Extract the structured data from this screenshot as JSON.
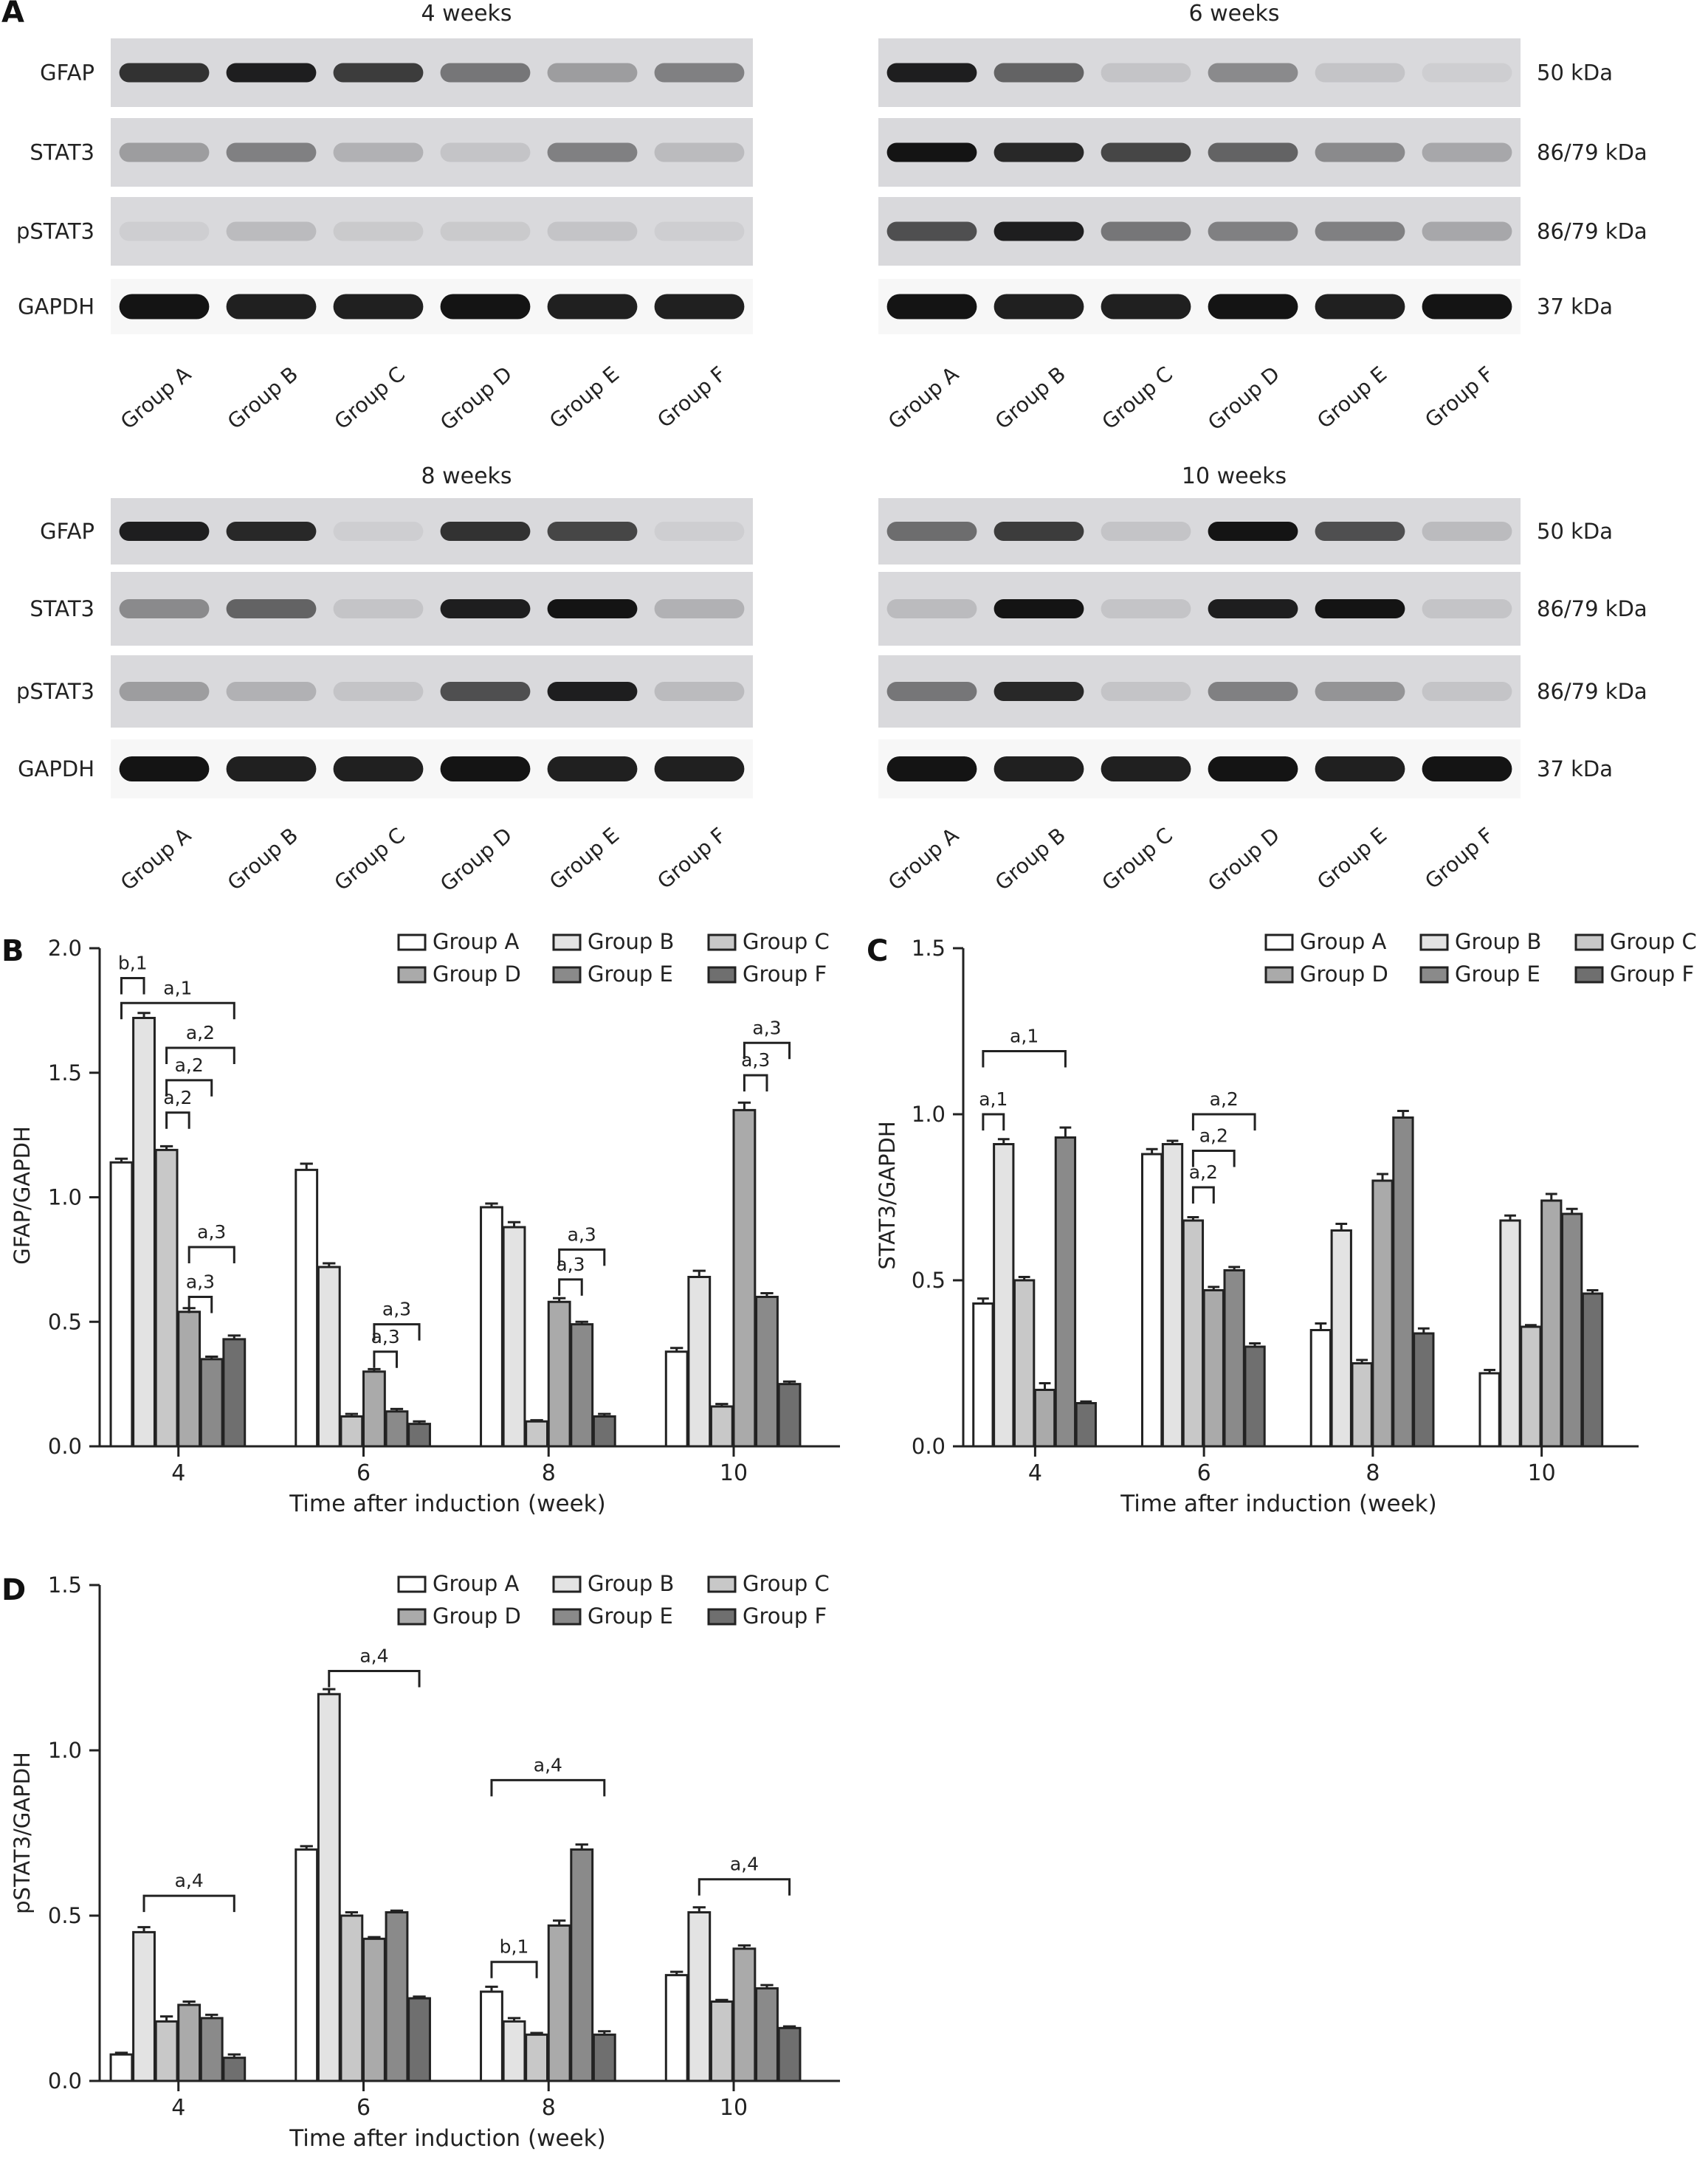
{
  "panel_letters": [
    "A",
    "B",
    "C",
    "D"
  ],
  "blots": {
    "groups": [
      "Group A",
      "Group B",
      "Group C",
      "Group D",
      "Group E",
      "Group F"
    ],
    "rows": [
      "GFAP",
      "STAT3",
      "pSTAT3",
      "GAPDH"
    ],
    "sizes": [
      "50 kDa",
      "86/79 kDa",
      "86/79 kDa",
      "37 kDa"
    ],
    "panels": [
      {
        "title": "4 weeks",
        "intensity": [
          [
            0.85,
            0.95,
            0.8,
            0.5,
            0.3,
            0.45
          ],
          [
            0.3,
            0.45,
            0.2,
            0.1,
            0.45,
            0.15
          ],
          [
            0.05,
            0.15,
            0.08,
            0.08,
            0.1,
            0.05
          ],
          [
            1,
            0.95,
            0.95,
            1,
            0.95,
            0.95
          ]
        ]
      },
      {
        "title": "6 weeks",
        "intensity": [
          [
            0.95,
            0.6,
            0.1,
            0.4,
            0.1,
            0.05
          ],
          [
            1,
            0.9,
            0.75,
            0.6,
            0.4,
            0.25
          ],
          [
            0.7,
            0.95,
            0.5,
            0.45,
            0.45,
            0.25
          ],
          [
            1,
            0.95,
            0.95,
            1,
            0.95,
            1
          ]
        ]
      },
      {
        "title": "8 weeks",
        "intensity": [
          [
            0.95,
            0.9,
            0.05,
            0.85,
            0.75,
            0.05
          ],
          [
            0.4,
            0.6,
            0.1,
            0.95,
            1,
            0.2
          ],
          [
            0.3,
            0.2,
            0.1,
            0.7,
            0.95,
            0.15
          ],
          [
            1,
            0.95,
            0.95,
            1,
            0.95,
            0.95
          ]
        ]
      },
      {
        "title": "10 weeks",
        "intensity": [
          [
            0.55,
            0.8,
            0.1,
            1,
            0.7,
            0.15
          ],
          [
            0.15,
            1,
            0.1,
            0.95,
            1,
            0.1
          ],
          [
            0.5,
            0.9,
            0.1,
            0.45,
            0.35,
            0.1
          ],
          [
            1,
            0.95,
            0.95,
            1,
            0.95,
            1
          ]
        ]
      }
    ]
  },
  "chart_data": [
    {
      "type": "bar",
      "panel": "B",
      "xlabel": "Time after induction (week)",
      "ylabel": "GFAP/GAPDH",
      "categories": [
        "4",
        "6",
        "8",
        "10"
      ],
      "ylim": [
        0,
        2.0
      ],
      "yticks": [
        "0.0",
        "0.5",
        "1.0",
        "1.5",
        "2.0"
      ],
      "series": [
        {
          "name": "Group A",
          "values": [
            1.14,
            1.11,
            0.96,
            0.38
          ],
          "errors": [
            0.015,
            0.025,
            0.015,
            0.015
          ]
        },
        {
          "name": "Group B",
          "values": [
            1.72,
            0.72,
            0.88,
            0.68
          ],
          "errors": [
            0.02,
            0.015,
            0.02,
            0.025
          ]
        },
        {
          "name": "Group C",
          "values": [
            1.19,
            0.12,
            0.1,
            0.16
          ],
          "errors": [
            0.015,
            0.01,
            0.005,
            0.01
          ]
        },
        {
          "name": "Group D",
          "values": [
            0.54,
            0.3,
            0.58,
            1.35
          ],
          "errors": [
            0.015,
            0.01,
            0.015,
            0.03
          ]
        },
        {
          "name": "Group E",
          "values": [
            0.35,
            0.14,
            0.49,
            0.6
          ],
          "errors": [
            0.01,
            0.01,
            0.01,
            0.015
          ]
        },
        {
          "name": "Group F",
          "values": [
            0.43,
            0.09,
            0.12,
            0.25
          ],
          "errors": [
            0.015,
            0.01,
            0.01,
            0.01
          ]
        }
      ],
      "annotations": [
        {
          "label": "b,1",
          "g": 0,
          "from": 0,
          "to": 1,
          "at": 1.88
        },
        {
          "label": "a,1",
          "g": 0,
          "from": 0,
          "to": 5,
          "at": 1.78
        },
        {
          "label": "a,2",
          "g": 0,
          "from": 2,
          "to": 5,
          "at": 1.6
        },
        {
          "label": "a,2",
          "g": 0,
          "from": 2,
          "to": 4,
          "at": 1.47
        },
        {
          "label": "a,2",
          "g": 0,
          "from": 2,
          "to": 3,
          "at": 1.34
        },
        {
          "label": "a,3",
          "g": 0,
          "from": 3,
          "to": 5,
          "at": 0.8
        },
        {
          "label": "a,3",
          "g": 0,
          "from": 3,
          "to": 4,
          "at": 0.6
        },
        {
          "label": "a,3",
          "g": 1,
          "from": 3,
          "to": 5,
          "at": 0.49
        },
        {
          "label": "a,3",
          "g": 1,
          "from": 3,
          "to": 4,
          "at": 0.38
        },
        {
          "label": "a,3",
          "g": 2,
          "from": 3,
          "to": 5,
          "at": 0.79
        },
        {
          "label": "a,3",
          "g": 2,
          "from": 3,
          "to": 4,
          "at": 0.67
        },
        {
          "label": "a,3",
          "g": 3,
          "from": 3,
          "to": 5,
          "at": 1.62
        },
        {
          "label": "a,3",
          "g": 3,
          "from": 3,
          "to": 4,
          "at": 1.49
        }
      ]
    },
    {
      "type": "bar",
      "panel": "C",
      "xlabel": "Time after induction (week)",
      "ylabel": "STAT3/GAPDH",
      "categories": [
        "4",
        "6",
        "8",
        "10"
      ],
      "ylim": [
        0,
        1.5
      ],
      "yticks": [
        "0.0",
        "0.5",
        "1.0",
        "1.5"
      ],
      "series": [
        {
          "name": "Group A",
          "values": [
            0.43,
            0.88,
            0.35,
            0.22
          ],
          "errors": [
            0.015,
            0.015,
            0.02,
            0.01
          ]
        },
        {
          "name": "Group B",
          "values": [
            0.91,
            0.91,
            0.65,
            0.68
          ],
          "errors": [
            0.015,
            0.01,
            0.02,
            0.015
          ]
        },
        {
          "name": "Group C",
          "values": [
            0.5,
            0.68,
            0.25,
            0.36
          ],
          "errors": [
            0.01,
            0.01,
            0.01,
            0.005
          ]
        },
        {
          "name": "Group D",
          "values": [
            0.17,
            0.47,
            0.8,
            0.74
          ],
          "errors": [
            0.02,
            0.01,
            0.02,
            0.02
          ]
        },
        {
          "name": "Group E",
          "values": [
            0.93,
            0.53,
            0.99,
            0.7
          ],
          "errors": [
            0.03,
            0.01,
            0.02,
            0.015
          ]
        },
        {
          "name": "Group F",
          "values": [
            0.13,
            0.3,
            0.34,
            0.46
          ],
          "errors": [
            0.005,
            0.01,
            0.015,
            0.01
          ]
        }
      ],
      "annotations": [
        {
          "label": "a,1",
          "g": 0,
          "from": 0,
          "to": 4,
          "at": 1.19
        },
        {
          "label": "a,1",
          "g": 0,
          "from": 0,
          "to": 1,
          "at": 1.0
        },
        {
          "label": "a,2",
          "g": 1,
          "from": 2,
          "to": 5,
          "at": 1.0
        },
        {
          "label": "a,2",
          "g": 1,
          "from": 2,
          "to": 4,
          "at": 0.89
        },
        {
          "label": "a,2",
          "g": 1,
          "from": 2,
          "to": 3,
          "at": 0.78
        }
      ]
    },
    {
      "type": "bar",
      "panel": "D",
      "xlabel": "Time after induction (week)",
      "ylabel": "pSTAT3/GAPDH",
      "categories": [
        "4",
        "6",
        "8",
        "10"
      ],
      "ylim": [
        0,
        1.5
      ],
      "yticks": [
        "0.0",
        "0.5",
        "1.0",
        "1.5"
      ],
      "series": [
        {
          "name": "Group A",
          "values": [
            0.08,
            0.7,
            0.27,
            0.32
          ],
          "errors": [
            0.005,
            0.01,
            0.015,
            0.01
          ]
        },
        {
          "name": "Group B",
          "values": [
            0.45,
            1.17,
            0.18,
            0.51
          ],
          "errors": [
            0.015,
            0.015,
            0.01,
            0.015
          ]
        },
        {
          "name": "Group C",
          "values": [
            0.18,
            0.5,
            0.14,
            0.24
          ],
          "errors": [
            0.015,
            0.01,
            0.005,
            0.005
          ]
        },
        {
          "name": "Group D",
          "values": [
            0.23,
            0.43,
            0.47,
            0.4
          ],
          "errors": [
            0.01,
            0.005,
            0.015,
            0.01
          ]
        },
        {
          "name": "Group E",
          "values": [
            0.19,
            0.51,
            0.7,
            0.28
          ],
          "errors": [
            0.01,
            0.005,
            0.015,
            0.01
          ]
        },
        {
          "name": "Group F",
          "values": [
            0.07,
            0.25,
            0.14,
            0.16
          ],
          "errors": [
            0.01,
            0.005,
            0.01,
            0.005
          ]
        }
      ],
      "annotations": [
        {
          "label": "a,4",
          "g": 0,
          "from": 1,
          "to": 5,
          "at": 0.56
        },
        {
          "label": "a,4",
          "g": 1,
          "from": 1,
          "to": 5,
          "at": 1.24
        },
        {
          "label": "a,4",
          "g": 2,
          "from": 0,
          "to": 5,
          "at": 0.91
        },
        {
          "label": "b,1",
          "g": 2,
          "from": 0,
          "to": 2,
          "at": 0.36
        },
        {
          "label": "a,4",
          "g": 3,
          "from": 1,
          "to": 5,
          "at": 0.61
        }
      ]
    }
  ],
  "colors": {
    "group_fills": [
      "#ffffff",
      "#e3e3e3",
      "#c8c8c8",
      "#aaaaaa",
      "#8a8a8a",
      "#6f6f6f"
    ],
    "axis": "#222222"
  }
}
